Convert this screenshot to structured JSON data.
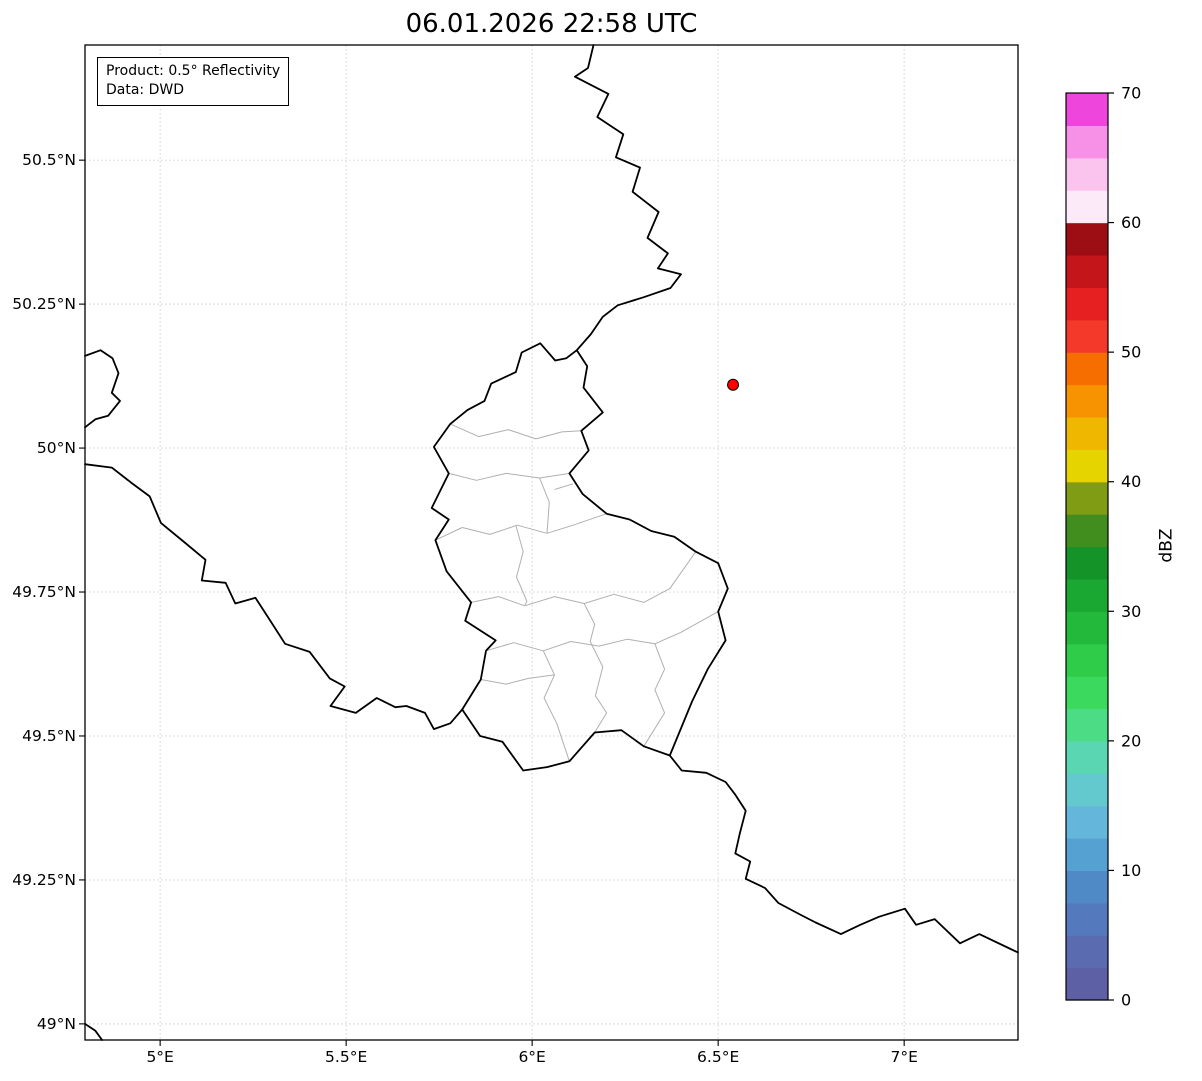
{
  "title": "06.01.2026 22:58 UTC",
  "info_box": {
    "product": "Product: 0.5° Reflectivity",
    "data_source": "Data: DWD"
  },
  "axes": {
    "extent": {
      "lon_min": 4.798,
      "lon_max": 7.306,
      "lat_min": 48.972,
      "lat_max": 50.7
    },
    "x_ticks": [
      {
        "value": 5.0,
        "label": "5°E"
      },
      {
        "value": 5.5,
        "label": "5.5°E"
      },
      {
        "value": 6.0,
        "label": "6°E"
      },
      {
        "value": 6.5,
        "label": "6.5°E"
      },
      {
        "value": 7.0,
        "label": "7°E"
      }
    ],
    "y_ticks": [
      {
        "value": 49.0,
        "label": "49°N"
      },
      {
        "value": 49.25,
        "label": "49.25°N"
      },
      {
        "value": 49.5,
        "label": "49.5°N"
      },
      {
        "value": 49.75,
        "label": "49.75°N"
      },
      {
        "value": 50.0,
        "label": "50°N"
      },
      {
        "value": 50.25,
        "label": "50.25°N"
      },
      {
        "value": 50.5,
        "label": "50.5°N"
      }
    ],
    "grid": true,
    "grid_color": "#cccccc"
  },
  "radar_site": {
    "lon": 6.54,
    "lat": 50.11,
    "marker_color": "#ff0000",
    "edge_color": "#000000"
  },
  "colorbar": {
    "label": "dBZ",
    "unit_min": 0,
    "unit_max": 70,
    "ticks": [
      "0",
      "10",
      "20",
      "30",
      "40",
      "50",
      "60",
      "70"
    ],
    "colors": [
      "#5e60a5",
      "#5a6bb0",
      "#5579bd",
      "#508ac6",
      "#55a1d2",
      "#64b7db",
      "#63c9cf",
      "#5ad6b2",
      "#4cdc86",
      "#3cd95f",
      "#2ecc49",
      "#23ba3b",
      "#1aa732",
      "#149329",
      "#418e1f",
      "#7f9c14",
      "#e6d400",
      "#f0b700",
      "#f79300",
      "#f66e00",
      "#f4392b",
      "#e61f20",
      "#c4151b",
      "#9c0e13",
      "#fdeaf8",
      "#fbc4ef",
      "#f791e8",
      "#ee46dd"
    ]
  },
  "map_layers": {
    "national_border_color": "#000000",
    "district_border_color": "#b0b0b0",
    "national_borders": [
      [
        [
          6.165,
          50.7
        ],
        [
          6.15,
          50.66
        ],
        [
          6.115,
          50.645
        ],
        [
          6.205,
          50.615
        ],
        [
          6.175,
          50.575
        ],
        [
          6.245,
          50.545
        ],
        [
          6.225,
          50.505
        ],
        [
          6.29,
          50.487
        ],
        [
          6.27,
          50.445
        ],
        [
          6.34,
          50.41
        ],
        [
          6.31,
          50.365
        ],
        [
          6.365,
          50.338
        ],
        [
          6.338,
          50.312
        ],
        [
          6.4,
          50.302
        ],
        [
          6.372,
          50.278
        ],
        [
          6.3,
          50.262
        ],
        [
          6.23,
          50.248
        ],
        [
          6.19,
          50.228
        ],
        [
          6.158,
          50.198
        ],
        [
          6.12,
          50.17
        ]
      ],
      [
        [
          6.12,
          50.17
        ],
        [
          6.148,
          50.142
        ],
        [
          6.138,
          50.105
        ],
        [
          6.19,
          50.062
        ],
        [
          6.132,
          50.03
        ],
        [
          6.152,
          49.996
        ],
        [
          6.1,
          49.956
        ],
        [
          6.136,
          49.92
        ],
        [
          6.2,
          49.886
        ],
        [
          6.262,
          49.876
        ],
        [
          6.32,
          49.856
        ],
        [
          6.382,
          49.846
        ],
        [
          6.44,
          49.82
        ],
        [
          6.5,
          49.8
        ],
        [
          6.526,
          49.756
        ],
        [
          6.5,
          49.716
        ],
        [
          6.52,
          49.666
        ],
        [
          6.472,
          49.616
        ],
        [
          6.43,
          49.56
        ],
        [
          6.37,
          49.466
        ],
        [
          6.3,
          49.482
        ],
        [
          6.24,
          49.51
        ],
        [
          6.168,
          49.506
        ],
        [
          6.1,
          49.456
        ],
        [
          6.04,
          49.446
        ],
        [
          5.976,
          49.44
        ],
        [
          5.92,
          49.49
        ],
        [
          5.86,
          49.5
        ],
        [
          5.812,
          49.546
        ],
        [
          5.862,
          49.598
        ],
        [
          5.876,
          49.648
        ],
        [
          5.902,
          49.666
        ],
        [
          5.82,
          49.7
        ],
        [
          5.836,
          49.732
        ],
        [
          5.77,
          49.786
        ],
        [
          5.74,
          49.84
        ],
        [
          5.776,
          49.876
        ],
        [
          5.73,
          49.896
        ],
        [
          5.776,
          49.956
        ],
        [
          5.736,
          50.002
        ],
        [
          5.78,
          50.042
        ],
        [
          5.826,
          50.066
        ],
        [
          5.872,
          50.082
        ],
        [
          5.89,
          50.112
        ],
        [
          5.956,
          50.132
        ],
        [
          5.972,
          50.166
        ],
        [
          6.022,
          50.182
        ],
        [
          6.062,
          50.152
        ],
        [
          6.092,
          50.156
        ],
        [
          6.12,
          50.17
        ]
      ],
      [
        [
          6.37,
          49.466
        ],
        [
          6.402,
          49.44
        ],
        [
          6.468,
          49.436
        ],
        [
          6.52,
          49.42
        ],
        [
          6.546,
          49.398
        ],
        [
          6.574,
          49.37
        ],
        [
          6.558,
          49.33
        ],
        [
          6.546,
          49.296
        ],
        [
          6.586,
          49.282
        ],
        [
          6.574,
          49.252
        ],
        [
          6.626,
          49.236
        ],
        [
          6.662,
          49.21
        ],
        [
          6.72,
          49.19
        ],
        [
          6.762,
          49.176
        ],
        [
          6.83,
          49.156
        ],
        [
          6.882,
          49.172
        ],
        [
          6.932,
          49.186
        ],
        [
          7.002,
          49.2
        ],
        [
          7.032,
          49.172
        ],
        [
          7.082,
          49.182
        ],
        [
          7.15,
          49.14
        ],
        [
          7.202,
          49.156
        ],
        [
          7.286,
          49.13
        ],
        [
          7.306,
          49.124
        ]
      ],
      [
        [
          4.798,
          49.972
        ],
        [
          4.87,
          49.966
        ],
        [
          4.922,
          49.94
        ],
        [
          4.972,
          49.916
        ],
        [
          5.002,
          49.87
        ],
        [
          5.066,
          49.836
        ],
        [
          5.122,
          49.806
        ],
        [
          5.112,
          49.77
        ],
        [
          5.176,
          49.766
        ],
        [
          5.202,
          49.73
        ],
        [
          5.256,
          49.74
        ],
        [
          5.296,
          49.7
        ],
        [
          5.336,
          49.66
        ],
        [
          5.402,
          49.646
        ],
        [
          5.456,
          49.6
        ],
        [
          5.496,
          49.586
        ],
        [
          5.458,
          49.552
        ],
        [
          5.526,
          49.54
        ],
        [
          5.582,
          49.566
        ],
        [
          5.632,
          49.55
        ],
        [
          5.662,
          49.552
        ],
        [
          5.712,
          49.54
        ],
        [
          5.736,
          49.512
        ],
        [
          5.78,
          49.522
        ],
        [
          5.812,
          49.546
        ]
      ],
      [
        [
          4.798,
          50.16
        ],
        [
          4.84,
          50.17
        ],
        [
          4.872,
          50.156
        ],
        [
          4.888,
          50.13
        ],
        [
          4.87,
          50.096
        ],
        [
          4.892,
          50.082
        ],
        [
          4.86,
          50.056
        ],
        [
          4.826,
          50.05
        ],
        [
          4.798,
          50.036
        ]
      ],
      [
        [
          4.798,
          49.0
        ],
        [
          4.826,
          48.988
        ],
        [
          4.844,
          48.972
        ]
      ]
    ],
    "district_borders": [
      [
        [
          5.776,
          49.956
        ],
        [
          5.85,
          49.944
        ],
        [
          5.93,
          49.956
        ],
        [
          6.02,
          49.948
        ],
        [
          6.1,
          49.956
        ]
      ],
      [
        [
          5.74,
          49.84
        ],
        [
          5.812,
          49.862
        ],
        [
          5.886,
          49.85
        ],
        [
          5.96,
          49.866
        ],
        [
          6.04,
          49.852
        ],
        [
          6.11,
          49.866
        ],
        [
          6.2,
          49.886
        ]
      ],
      [
        [
          5.78,
          50.042
        ],
        [
          5.856,
          50.02
        ],
        [
          5.936,
          50.032
        ],
        [
          6.01,
          50.016
        ],
        [
          6.08,
          50.028
        ],
        [
          6.132,
          50.03
        ]
      ],
      [
        [
          5.836,
          49.732
        ],
        [
          5.91,
          49.742
        ],
        [
          5.98,
          49.726
        ],
        [
          6.06,
          49.742
        ],
        [
          6.14,
          49.73
        ],
        [
          6.22,
          49.746
        ],
        [
          6.3,
          49.732
        ],
        [
          6.37,
          49.756
        ],
        [
          6.44,
          49.82
        ]
      ],
      [
        [
          5.876,
          49.648
        ],
        [
          5.95,
          49.662
        ],
        [
          6.03,
          49.648
        ],
        [
          6.104,
          49.664
        ],
        [
          6.18,
          49.656
        ],
        [
          6.256,
          49.668
        ],
        [
          6.33,
          49.66
        ],
        [
          6.4,
          49.68
        ],
        [
          6.5,
          49.716
        ]
      ],
      [
        [
          5.956,
          49.866
        ],
        [
          5.976,
          49.82
        ],
        [
          5.958,
          49.776
        ],
        [
          5.986,
          49.734
        ],
        [
          5.98,
          49.726
        ]
      ],
      [
        [
          6.02,
          49.948
        ],
        [
          6.046,
          49.906
        ],
        [
          6.04,
          49.852
        ]
      ],
      [
        [
          6.14,
          49.73
        ],
        [
          6.168,
          49.694
        ],
        [
          6.156,
          49.664
        ],
        [
          6.19,
          49.62
        ],
        [
          6.17,
          49.57
        ],
        [
          6.2,
          49.54
        ],
        [
          6.168,
          49.506
        ]
      ],
      [
        [
          6.33,
          49.66
        ],
        [
          6.356,
          49.616
        ],
        [
          6.33,
          49.58
        ],
        [
          6.356,
          49.54
        ],
        [
          6.3,
          49.482
        ]
      ],
      [
        [
          6.03,
          49.648
        ],
        [
          6.06,
          49.606
        ],
        [
          6.032,
          49.566
        ],
        [
          6.066,
          49.522
        ],
        [
          6.1,
          49.456
        ]
      ],
      [
        [
          5.862,
          49.598
        ],
        [
          5.93,
          49.59
        ],
        [
          5.99,
          49.6
        ],
        [
          6.06,
          49.606
        ]
      ],
      [
        [
          6.06,
          49.928
        ],
        [
          6.11,
          49.938
        ]
      ]
    ]
  }
}
